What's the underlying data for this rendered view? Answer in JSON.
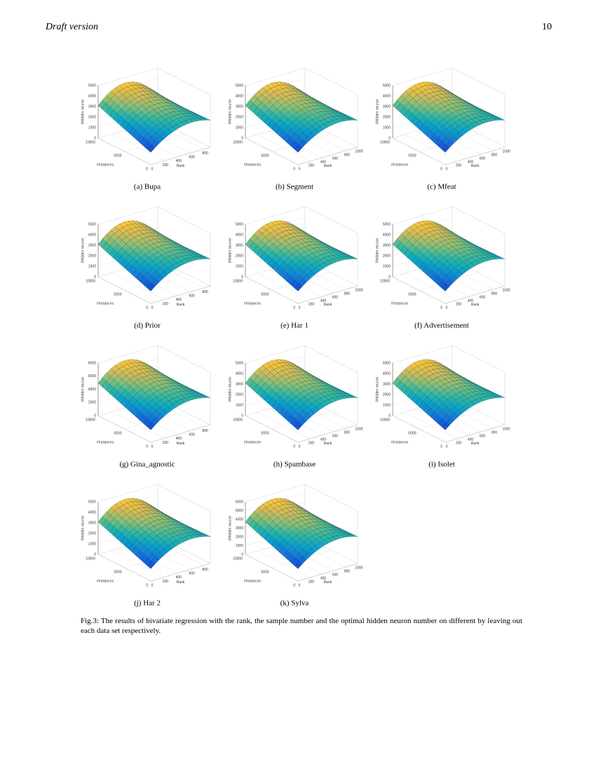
{
  "header": {
    "title": "Draft version",
    "page": "10"
  },
  "axis_labels": {
    "z": "#Hidden neuron",
    "y": "#Instances",
    "x": "Rank"
  },
  "figures": [
    {
      "caption": "(a) Bupa",
      "zlim": [
        0,
        5000
      ],
      "zticks": [
        0,
        1000,
        2000,
        3000,
        4000,
        5000
      ],
      "ylim": [
        0,
        10000
      ],
      "yticks": [
        0,
        5000,
        10000
      ],
      "xlim": [
        0,
        900
      ],
      "xticks": [
        0,
        200,
        400,
        600,
        800
      ]
    },
    {
      "caption": "(b) Segment",
      "zlim": [
        0,
        5000
      ],
      "zticks": [
        0,
        1000,
        2000,
        3000,
        4000,
        5000
      ],
      "ylim": [
        0,
        10000
      ],
      "yticks": [
        0,
        5000,
        10000
      ],
      "xlim": [
        0,
        1000
      ],
      "xticks": [
        0,
        200,
        400,
        600,
        800,
        1000
      ]
    },
    {
      "caption": "(c) Mfeat",
      "zlim": [
        0,
        5000
      ],
      "zticks": [
        0,
        1000,
        2000,
        3000,
        4000,
        5000
      ],
      "ylim": [
        0,
        10000
      ],
      "yticks": [
        0,
        5000,
        10000
      ],
      "xlim": [
        0,
        1000
      ],
      "xticks": [
        0,
        200,
        400,
        600,
        800,
        1000
      ]
    },
    {
      "caption": "(d) Prior",
      "zlim": [
        0,
        5000
      ],
      "zticks": [
        0,
        1000,
        2000,
        3000,
        4000,
        5000
      ],
      "ylim": [
        0,
        10000
      ],
      "yticks": [
        0,
        5000,
        10000
      ],
      "xlim": [
        0,
        900
      ],
      "xticks": [
        0,
        200,
        400,
        600,
        800
      ]
    },
    {
      "caption": "(e) Har 1",
      "zlim": [
        0,
        5000
      ],
      "zticks": [
        0,
        1000,
        2000,
        3000,
        4000,
        5000
      ],
      "ylim": [
        0,
        10000
      ],
      "yticks": [
        0,
        5000,
        10000
      ],
      "xlim": [
        0,
        1000
      ],
      "xticks": [
        0,
        200,
        400,
        600,
        800,
        1000
      ]
    },
    {
      "caption": "(f) Advertisement",
      "zlim": [
        0,
        5000
      ],
      "zticks": [
        0,
        1000,
        2000,
        3000,
        4000,
        5000
      ],
      "ylim": [
        0,
        10000
      ],
      "yticks": [
        0,
        5000,
        10000
      ],
      "xlim": [
        0,
        1000
      ],
      "xticks": [
        0,
        200,
        400,
        600,
        800,
        1000
      ]
    },
    {
      "caption": "(g) Gina_agnostic",
      "zlim": [
        0,
        8000
      ],
      "zticks": [
        0,
        2000,
        4000,
        6000,
        8000
      ],
      "ylim": [
        0,
        10000
      ],
      "yticks": [
        0,
        5000,
        10000
      ],
      "xlim": [
        0,
        900
      ],
      "xticks": [
        0,
        200,
        400,
        600,
        800
      ]
    },
    {
      "caption": "(h) Spambase",
      "zlim": [
        0,
        5000
      ],
      "zticks": [
        0,
        1000,
        2000,
        3000,
        4000,
        5000
      ],
      "ylim": [
        0,
        10000
      ],
      "yticks": [
        0,
        5000,
        10000
      ],
      "xlim": [
        0,
        1000
      ],
      "xticks": [
        0,
        200,
        400,
        600,
        800,
        1000
      ]
    },
    {
      "caption": "(i) Isolet",
      "zlim": [
        0,
        5000
      ],
      "zticks": [
        0,
        1000,
        2000,
        3000,
        4000,
        5000
      ],
      "ylim": [
        0,
        10000
      ],
      "yticks": [
        0,
        5000,
        10000
      ],
      "xlim": [
        0,
        1000
      ],
      "xticks": [
        0,
        200,
        400,
        600,
        800,
        1000
      ]
    },
    {
      "caption": "(j) Har 2",
      "zlim": [
        0,
        5000
      ],
      "zticks": [
        0,
        1000,
        2000,
        3000,
        4000,
        5000
      ],
      "ylim": [
        0,
        10000
      ],
      "yticks": [
        0,
        5000,
        10000
      ],
      "xlim": [
        0,
        900
      ],
      "xticks": [
        0,
        200,
        400,
        600,
        800
      ]
    },
    {
      "caption": "(k) Sylva",
      "zlim": [
        0,
        6000
      ],
      "zticks": [
        0,
        1000,
        2000,
        3000,
        4000,
        5000,
        6000
      ],
      "ylim": [
        0,
        10000
      ],
      "yticks": [
        0,
        5000,
        10000
      ],
      "xlim": [
        0,
        1000
      ],
      "xticks": [
        0,
        200,
        400,
        600,
        800,
        1000
      ]
    }
  ],
  "figure_caption": "Fig.3:  The results of bivariate regression with the rank, the sample number and the optimal hidden neuron number on different by leaving out each data set respectively."
}
